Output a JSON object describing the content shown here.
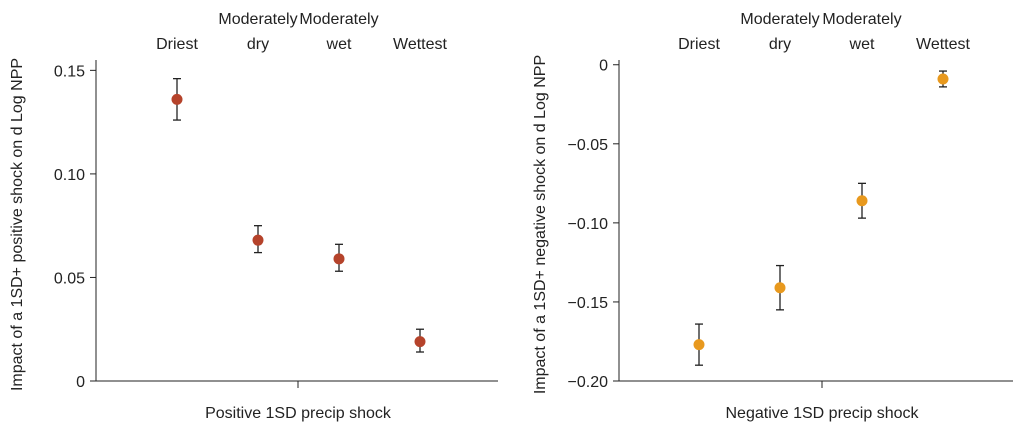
{
  "chart_data": [
    {
      "type": "scatter",
      "xlabel": "Positive 1SD precip shock",
      "ylabel": "Impact of a 1SD+ positive shock on d Log NPP",
      "categories": [
        "Driest",
        "Moderately\ndry",
        "Moderately\nwet",
        "Wettest"
      ],
      "ylim": [
        0,
        0.155
      ],
      "yticks": [
        0,
        0.05,
        0.1,
        0.15
      ],
      "ytick_labels": [
        "0",
        "0.05",
        "0.10",
        "0.15"
      ],
      "series": [
        {
          "values": [
            0.136,
            0.068,
            0.059,
            0.019
          ],
          "err_low": [
            0.126,
            0.062,
            0.053,
            0.014
          ],
          "err_high": [
            0.146,
            0.075,
            0.066,
            0.025
          ]
        }
      ],
      "color": "#b5432b",
      "grid": false,
      "legend": "none"
    },
    {
      "type": "scatter",
      "xlabel": "Negative 1SD precip shock",
      "ylabel": "Impact of a 1SD+ negative shock on d Log NPP",
      "categories": [
        "Driest",
        "Moderately\ndry",
        "Moderately\nwet",
        "Wettest"
      ],
      "ylim": [
        -0.2,
        0.003
      ],
      "yticks": [
        -0.2,
        -0.15,
        -0.1,
        -0.05,
        0
      ],
      "ytick_labels": [
        "−0.20",
        "−0.15",
        "−0.10",
        "−0.05",
        "0"
      ],
      "series": [
        {
          "values": [
            -0.177,
            -0.141,
            -0.086,
            -0.009
          ],
          "err_low": [
            -0.19,
            -0.155,
            -0.097,
            -0.014
          ],
          "err_high": [
            -0.164,
            -0.127,
            -0.075,
            -0.004
          ]
        }
      ],
      "color": "#e8991e",
      "grid": false,
      "legend": "none"
    }
  ]
}
